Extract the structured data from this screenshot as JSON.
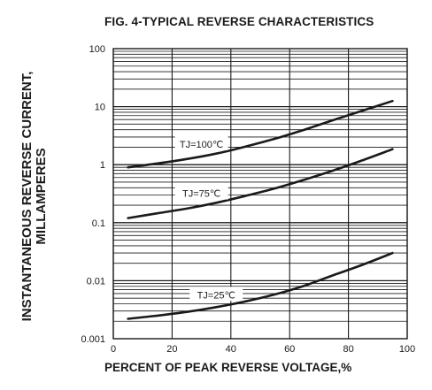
{
  "chart_data": {
    "type": "line",
    "title": "FIG. 4-TYPICAL REVERSE CHARACTERISTICS",
    "xlabel": "PERCENT OF PEAK REVERSE VOLTAGE,%",
    "ylabel": "INSTANTANEOUS REVERSE CURRENT,\nMILLAMPERES",
    "xlim": [
      0,
      100
    ],
    "ylim": [
      0.001,
      100
    ],
    "yscale": "log",
    "grid": true,
    "x_ticks": [
      {
        "value": 0,
        "label": "0"
      },
      {
        "value": 20,
        "label": "20"
      },
      {
        "value": 40,
        "label": "40"
      },
      {
        "value": 60,
        "label": "60"
      },
      {
        "value": 80,
        "label": "80"
      },
      {
        "value": 100,
        "label": "100"
      }
    ],
    "y_ticks": [
      {
        "value": 0.001,
        "label": "0.001"
      },
      {
        "value": 0.01,
        "label": "0.01"
      },
      {
        "value": 0.1,
        "label": "0.1"
      },
      {
        "value": 1,
        "label": "1"
      },
      {
        "value": 10,
        "label": "10"
      },
      {
        "value": 100,
        "label": "100"
      }
    ],
    "series": [
      {
        "name": "TJ=100℃",
        "x": [
          5,
          15,
          25,
          35,
          45,
          55,
          65,
          75,
          85,
          95
        ],
        "y": [
          0.9,
          1.05,
          1.25,
          1.55,
          2.05,
          2.8,
          4.0,
          5.9,
          8.6,
          12.5
        ]
      },
      {
        "name": "TJ=75℃",
        "x": [
          5,
          15,
          25,
          35,
          45,
          55,
          65,
          75,
          85,
          95
        ],
        "y": [
          0.12,
          0.145,
          0.175,
          0.22,
          0.29,
          0.39,
          0.55,
          0.8,
          1.2,
          1.85
        ]
      },
      {
        "name": "TJ=25℃",
        "x": [
          5,
          15,
          25,
          35,
          45,
          55,
          65,
          75,
          85,
          95
        ],
        "y": [
          0.0022,
          0.0025,
          0.0029,
          0.0035,
          0.0044,
          0.0058,
          0.0082,
          0.0125,
          0.019,
          0.03
        ]
      }
    ]
  }
}
